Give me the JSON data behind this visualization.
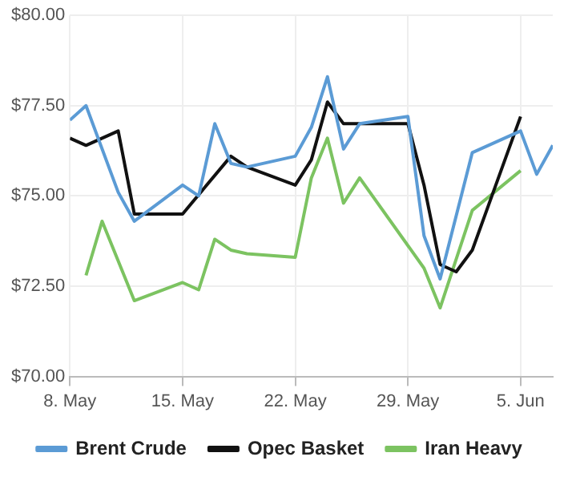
{
  "chart_data": {
    "type": "line",
    "legend": "bottom",
    "grid": true,
    "marker": "none",
    "line_style": "solid",
    "xlim": [
      "--05-08",
      "--06-07"
    ],
    "xticks": [
      {
        "value": "--05-08",
        "label": "8. May"
      },
      {
        "value": "--05-15",
        "label": "15. May"
      },
      {
        "value": "--05-22",
        "label": "22. May"
      },
      {
        "value": "--05-29",
        "label": "29. May"
      },
      {
        "value": "--06-05",
        "label": "5. Jun"
      }
    ],
    "ylim": [
      70,
      80
    ],
    "yticks": [
      {
        "value": 70,
        "label": "$70.00"
      },
      {
        "value": 72.5,
        "label": "$72.50"
      },
      {
        "value": 75,
        "label": "$75.00"
      },
      {
        "value": 77.5,
        "label": "$77.50"
      },
      {
        "value": 80,
        "label": "$80.00"
      }
    ],
    "series": [
      {
        "name": "Brent Crude",
        "color": "#5b9bd5",
        "x": [
          "--05-08",
          "--05-09",
          "--05-11",
          "--05-12",
          "--05-15",
          "--05-16",
          "--05-17",
          "--05-18",
          "--05-19",
          "--05-22",
          "--05-23",
          "--05-24",
          "--05-25",
          "--05-26",
          "--05-29",
          "--05-30",
          "--05-31",
          "--06-02",
          "--06-05",
          "--06-06",
          "--06-07"
        ],
        "values": [
          77.1,
          77.5,
          75.1,
          74.3,
          75.3,
          75.0,
          77.0,
          75.9,
          75.8,
          76.1,
          76.9,
          78.3,
          76.3,
          77.0,
          77.2,
          73.9,
          72.7,
          76.2,
          76.8,
          75.6,
          76.4
        ]
      },
      {
        "name": "Opec Basket",
        "color": "#111111",
        "x": [
          "--05-08",
          "--05-09",
          "--05-11",
          "--05-12",
          "--05-15",
          "--05-18",
          "--05-19",
          "--05-22",
          "--05-23",
          "--05-24",
          "--05-25",
          "--05-29",
          "--05-30",
          "--05-31",
          "--06-01",
          "--06-02",
          "--06-05"
        ],
        "values": [
          76.6,
          76.4,
          76.8,
          74.5,
          74.5,
          76.1,
          75.8,
          75.3,
          76.0,
          77.6,
          77.0,
          77.0,
          75.3,
          73.1,
          72.9,
          73.5,
          77.2
        ]
      },
      {
        "name": "Iran Heavy",
        "color": "#7cc361",
        "x": [
          "--05-09",
          "--05-10",
          "--05-12",
          "--05-15",
          "--05-16",
          "--05-17",
          "--05-18",
          "--05-19",
          "--05-22",
          "--05-23",
          "--05-24",
          "--05-25",
          "--05-26",
          "--05-30",
          "--05-31",
          "--06-02",
          "--06-05"
        ],
        "values": [
          72.8,
          74.3,
          72.1,
          72.6,
          72.4,
          73.8,
          73.5,
          73.4,
          73.3,
          75.5,
          76.6,
          74.8,
          75.5,
          73.0,
          71.9,
          74.6,
          75.7
        ]
      }
    ]
  }
}
